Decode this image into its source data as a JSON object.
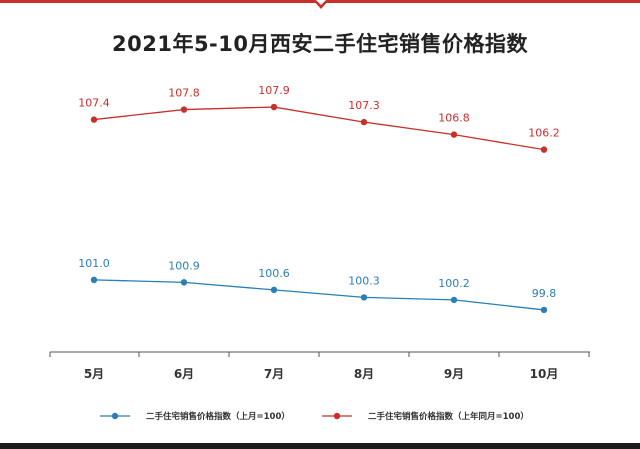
{
  "chart_data": {
    "type": "line",
    "title": "2021年5-10月西安二手住宅销售价格指数",
    "categories": [
      "5月",
      "6月",
      "7月",
      "8月",
      "9月",
      "10月"
    ],
    "series": [
      {
        "name": "二手住宅销售价格指数（上月=100）",
        "color": "#2a7fb8",
        "values": [
          101.0,
          100.9,
          100.6,
          100.3,
          100.2,
          99.8
        ],
        "labels": [
          "101.0",
          "100.9",
          "100.6",
          "100.3",
          "100.2",
          "99.8"
        ]
      },
      {
        "name": "二手住宅销售价格指数（上年同月=100）",
        "color": "#c8302c",
        "values": [
          107.4,
          107.8,
          107.9,
          107.3,
          106.8,
          106.2
        ],
        "labels": [
          "107.4",
          "107.8",
          "107.9",
          "107.3",
          "106.8",
          "106.2"
        ]
      }
    ],
    "ylim": [
      98.12,
      109.1
    ],
    "grid": false,
    "legend": "bottom",
    "xlabel": "",
    "ylabel": ""
  },
  "colors": {
    "accent": "#c8302c",
    "footer": "#1c1c1c"
  }
}
